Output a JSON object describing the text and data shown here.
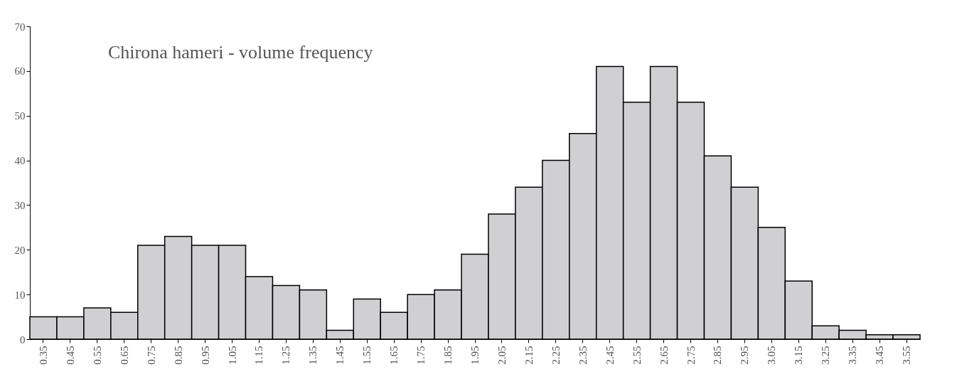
{
  "chart_data": {
    "type": "bar",
    "title": "Chirona hameri - volume frequency",
    "categories": [
      "0.35",
      "0.45",
      "0.55",
      "0.65",
      "0.75",
      "0.85",
      "0.95",
      "1.05",
      "1.15",
      "1.25",
      "1.35",
      "1.45",
      "1.55",
      "1.65",
      "1.75",
      "1.85",
      "1.95",
      "2.05",
      "2.15",
      "2.25",
      "2.35",
      "2.45",
      "2.55",
      "2.65",
      "2.75",
      "2.85",
      "2.95",
      "3.05",
      "3.15",
      "3.25",
      "3.35",
      "3.45",
      "3.55"
    ],
    "values": [
      5,
      5,
      7,
      6,
      21,
      23,
      21,
      21,
      14,
      12,
      11,
      2,
      9,
      6,
      10,
      11,
      19,
      28,
      34,
      40,
      46,
      61,
      53,
      61,
      53,
      41,
      34,
      25,
      13,
      3,
      2,
      1,
      1
    ],
    "color": "#d0cfd1",
    "ylim": [
      0,
      70
    ],
    "yticks": [
      0,
      10,
      20,
      30,
      40,
      50,
      60,
      70
    ],
    "grid": false
  }
}
